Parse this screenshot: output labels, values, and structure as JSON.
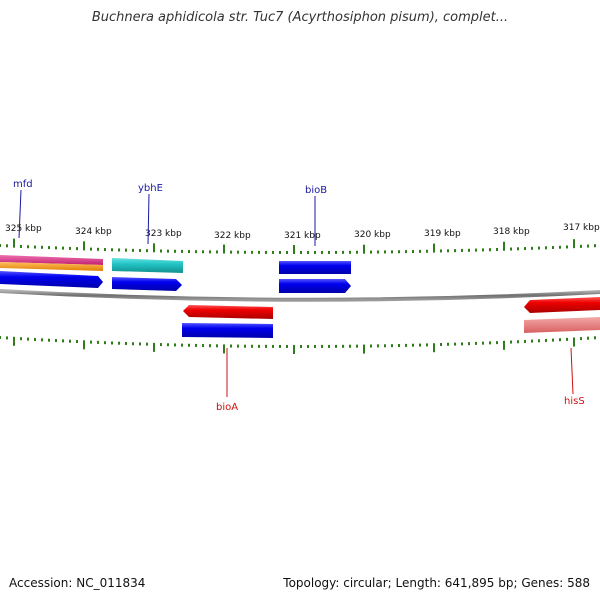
{
  "title": "Buchnera aphidicola str. Tuc7 (Acyrthosiphon pisum), complet...",
  "footer": {
    "accession": "Accession: NC_011834",
    "summary": "Topology: circular; Length: 641,895 bp; Genes: 588"
  },
  "scale": {
    "unit": "kbp",
    "tick_labels": [
      "325 kbp",
      "324 kbp",
      "323 kbp",
      "322 kbp",
      "321 kbp",
      "320 kbp",
      "319 kbp",
      "318 kbp",
      "317 kbp"
    ]
  },
  "genes": {
    "forward_labels": [
      {
        "name": "mfd",
        "color": "#1a1aa0"
      },
      {
        "name": "ybhE",
        "color": "#1a1aa0"
      },
      {
        "name": "bioB",
        "color": "#1a1aa0"
      }
    ],
    "reverse_labels": [
      {
        "name": "bioA",
        "color": "#cc1111"
      },
      {
        "name": "hisS",
        "color": "#cc1111"
      }
    ]
  },
  "colors": {
    "backbone": "#808080",
    "tick": "#2e7d1a",
    "forward_gene": "#0000ee",
    "reverse_gene": "#ee0000",
    "ybhE_band": "#22c4c4",
    "mfd_band_pink": "#e0358f",
    "mfd_band_orange": "#f5a01a",
    "hisS_band": "#e98080"
  }
}
